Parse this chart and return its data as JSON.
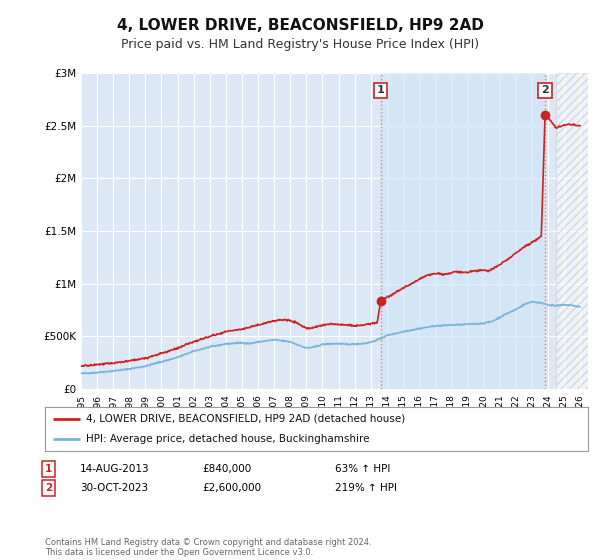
{
  "title": "4, LOWER DRIVE, BEACONSFIELD, HP9 2AD",
  "subtitle": "Price paid vs. HM Land Registry's House Price Index (HPI)",
  "title_fontsize": 11,
  "subtitle_fontsize": 9,
  "background_color": "#ffffff",
  "plot_bg_color": "#dce8f5",
  "grid_color": "#ffffff",
  "shade_color": "#dce8f5",
  "hatch_color": "#cccccc",
  "ylim": [
    0,
    3000000
  ],
  "yticks": [
    0,
    500000,
    1000000,
    1500000,
    2000000,
    2500000,
    3000000
  ],
  "ytick_labels": [
    "£0",
    "£500K",
    "£1M",
    "£1.5M",
    "£2M",
    "£2.5M",
    "£3M"
  ],
  "xmin": 1995.0,
  "xmax": 2026.5,
  "hpi_line_color": "#7ab3d9",
  "sale_line_color": "#cc2222",
  "sale_marker_color": "#cc2222",
  "vline_color": "#e87a7a",
  "sale1_x": 2013.62,
  "sale1_y": 840000,
  "sale2_x": 2023.83,
  "sale2_y": 2600000,
  "hatch_start": 2024.5,
  "legend_label1": "4, LOWER DRIVE, BEACONSFIELD, HP9 2AD (detached house)",
  "legend_label2": "HPI: Average price, detached house, Buckinghamshire",
  "footnote": "Contains HM Land Registry data © Crown copyright and database right 2024.\nThis data is licensed under the Open Government Licence v3.0.",
  "table_row1": [
    "1",
    "14-AUG-2013",
    "£840,000",
    "63% ↑ HPI"
  ],
  "table_row2": [
    "2",
    "30-OCT-2023",
    "£2,600,000",
    "219% ↑ HPI"
  ]
}
